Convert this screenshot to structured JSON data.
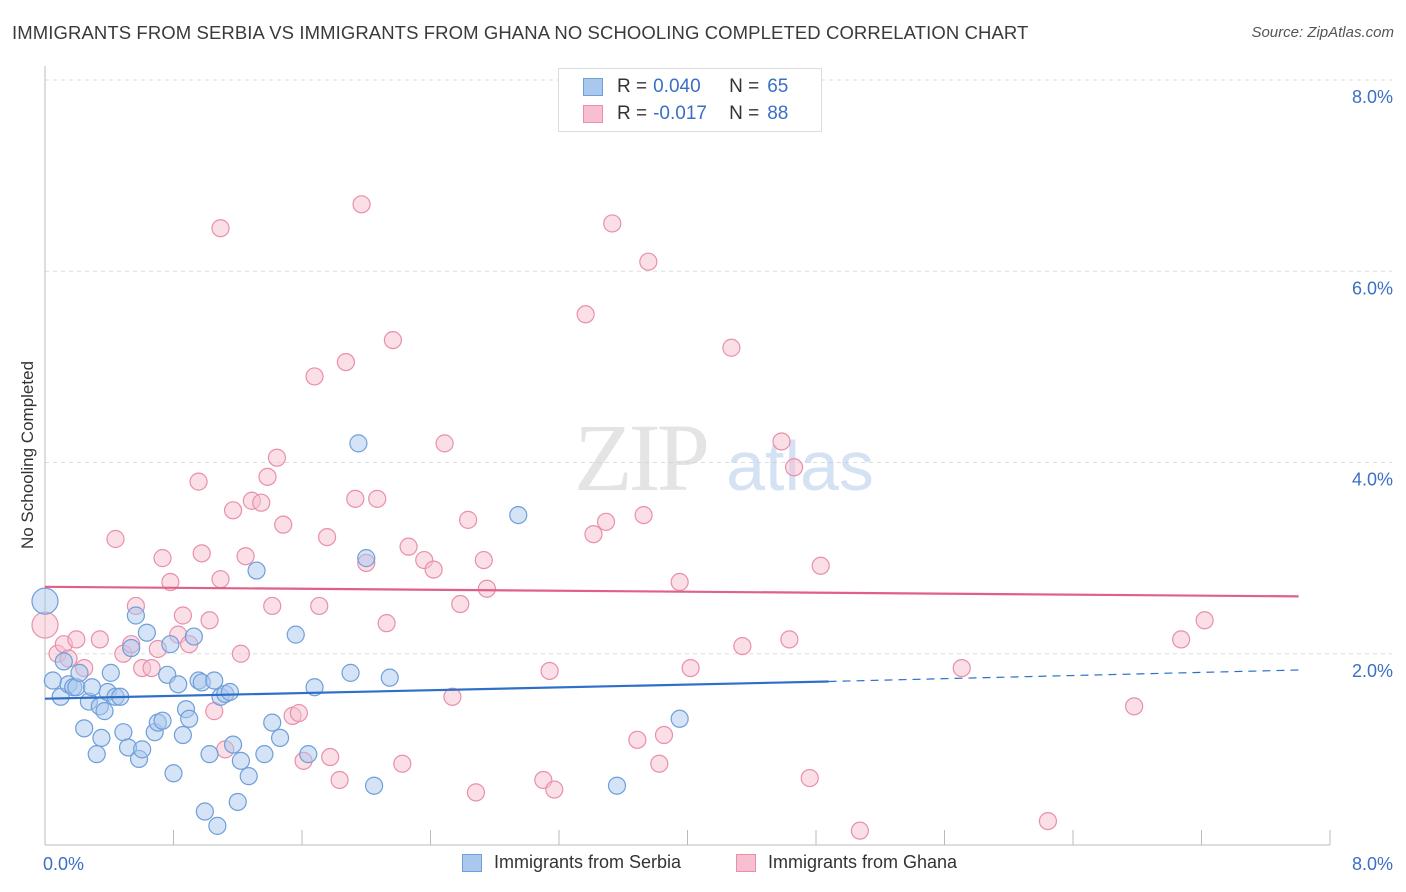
{
  "title": "IMMIGRANTS FROM SERBIA VS IMMIGRANTS FROM GHANA NO SCHOOLING COMPLETED CORRELATION CHART",
  "source": "Source: ZipAtlas.com",
  "watermark": {
    "zip": "ZIP",
    "atlas": "atlas"
  },
  "legend": {
    "serbia": {
      "r_label": "R =",
      "r_value": "0.040",
      "n_label": "N =",
      "n_value": "65"
    },
    "ghana": {
      "r_label": "R =",
      "r_value": "-0.017",
      "n_label": "N =",
      "n_value": "88"
    }
  },
  "colors": {
    "serbia_fill": "#aac8ee",
    "serbia_stroke": "#6f9fd9",
    "serbia_line": "#2f6fc9",
    "ghana_fill": "#f7bfd0",
    "ghana_stroke": "#e98fab",
    "ghana_line": "#e0608a",
    "tick_label": "#3b6fc4",
    "grid": "#dddddd"
  },
  "chart_data": {
    "type": "scatter",
    "title": "IMMIGRANTS FROM SERBIA VS IMMIGRANTS FROM GHANA NO SCHOOLING COMPLETED CORRELATION CHART",
    "xlabel": "",
    "ylabel": "No Schooling Completed",
    "xlim": [
      0,
      8.2
    ],
    "ylim": [
      0,
      8
    ],
    "x_tick_labels": [
      "0.0%",
      "8.0%"
    ],
    "y_tick_labels": [
      "2.0%",
      "4.0%",
      "6.0%",
      "8.0%"
    ],
    "y_ticks": [
      2,
      4,
      6,
      8
    ],
    "grid": true,
    "legend_position": "top-center",
    "series": [
      {
        "name": "Immigrants from Serbia",
        "trend": {
          "x0": 0.0,
          "y0": 1.53,
          "x1": 5.0,
          "y1": 1.71,
          "dashed_to_x": 8.0,
          "dashed_to_y": 1.83
        },
        "points": [
          [
            0.0,
            2.55
          ],
          [
            0.05,
            1.72
          ],
          [
            0.1,
            1.55
          ],
          [
            0.12,
            1.92
          ],
          [
            0.15,
            1.68
          ],
          [
            0.18,
            1.65
          ],
          [
            0.2,
            1.65
          ],
          [
            0.22,
            1.8
          ],
          [
            0.25,
            1.22
          ],
          [
            0.28,
            1.5
          ],
          [
            0.3,
            1.65
          ],
          [
            0.33,
            0.95
          ],
          [
            0.35,
            1.45
          ],
          [
            0.36,
            1.12
          ],
          [
            0.38,
            1.4
          ],
          [
            0.4,
            1.6
          ],
          [
            0.42,
            1.8
          ],
          [
            0.45,
            1.55
          ],
          [
            0.48,
            1.55
          ],
          [
            0.5,
            1.18
          ],
          [
            0.53,
            1.02
          ],
          [
            0.55,
            2.06
          ],
          [
            0.58,
            2.4
          ],
          [
            0.6,
            0.9
          ],
          [
            0.62,
            1.0
          ],
          [
            0.65,
            2.22
          ],
          [
            0.7,
            1.18
          ],
          [
            0.72,
            1.28
          ],
          [
            0.75,
            1.3
          ],
          [
            0.78,
            1.78
          ],
          [
            0.8,
            2.1
          ],
          [
            0.82,
            0.75
          ],
          [
            0.85,
            1.68
          ],
          [
            0.88,
            1.15
          ],
          [
            0.9,
            1.42
          ],
          [
            0.92,
            1.32
          ],
          [
            0.95,
            2.18
          ],
          [
            0.98,
            1.72
          ],
          [
            1.0,
            1.7
          ],
          [
            1.02,
            0.35
          ],
          [
            1.05,
            0.95
          ],
          [
            1.08,
            1.72
          ],
          [
            1.1,
            0.2
          ],
          [
            1.12,
            1.55
          ],
          [
            1.15,
            1.58
          ],
          [
            1.18,
            1.6
          ],
          [
            1.2,
            1.05
          ],
          [
            1.23,
            0.45
          ],
          [
            1.25,
            0.88
          ],
          [
            1.3,
            0.72
          ],
          [
            1.35,
            2.87
          ],
          [
            1.4,
            0.95
          ],
          [
            1.45,
            1.28
          ],
          [
            1.5,
            1.12
          ],
          [
            1.6,
            2.2
          ],
          [
            1.68,
            0.95
          ],
          [
            1.72,
            1.65
          ],
          [
            1.95,
            1.8
          ],
          [
            2.0,
            4.2
          ],
          [
            2.05,
            3.0
          ],
          [
            2.2,
            1.75
          ],
          [
            2.1,
            0.62
          ],
          [
            3.02,
            3.45
          ],
          [
            3.65,
            0.62
          ],
          [
            4.05,
            1.32
          ]
        ]
      },
      {
        "name": "Immigrants from Ghana",
        "trend": {
          "x0": 0.0,
          "y0": 2.7,
          "x1": 8.0,
          "y1": 2.6
        },
        "points": [
          [
            0.0,
            2.3
          ],
          [
            0.08,
            2.0
          ],
          [
            0.12,
            2.1
          ],
          [
            0.15,
            1.95
          ],
          [
            0.2,
            2.15
          ],
          [
            0.25,
            1.85
          ],
          [
            0.35,
            2.15
          ],
          [
            0.45,
            3.2
          ],
          [
            0.5,
            2.0
          ],
          [
            0.55,
            2.1
          ],
          [
            0.58,
            2.5
          ],
          [
            0.62,
            1.85
          ],
          [
            0.68,
            1.85
          ],
          [
            0.72,
            2.05
          ],
          [
            0.75,
            3.0
          ],
          [
            0.8,
            2.75
          ],
          [
            0.85,
            2.2
          ],
          [
            0.88,
            2.4
          ],
          [
            0.92,
            2.1
          ],
          [
            0.98,
            3.8
          ],
          [
            1.0,
            3.05
          ],
          [
            1.05,
            2.35
          ],
          [
            1.08,
            1.4
          ],
          [
            1.12,
            2.78
          ],
          [
            1.15,
            1.0
          ],
          [
            1.2,
            3.5
          ],
          [
            1.25,
            2.0
          ],
          [
            1.28,
            3.02
          ],
          [
            1.32,
            3.6
          ],
          [
            1.38,
            3.58
          ],
          [
            1.42,
            3.85
          ],
          [
            1.45,
            2.5
          ],
          [
            1.48,
            4.05
          ],
          [
            1.52,
            3.35
          ],
          [
            1.58,
            1.35
          ],
          [
            1.62,
            1.38
          ],
          [
            1.65,
            0.88
          ],
          [
            1.72,
            4.9
          ],
          [
            1.75,
            2.5
          ],
          [
            1.8,
            3.22
          ],
          [
            1.82,
            0.92
          ],
          [
            1.88,
            0.68
          ],
          [
            1.92,
            5.05
          ],
          [
            1.98,
            3.62
          ],
          [
            2.02,
            6.7
          ],
          [
            2.05,
            2.95
          ],
          [
            2.12,
            3.62
          ],
          [
            2.18,
            2.32
          ],
          [
            2.22,
            5.28
          ],
          [
            2.28,
            0.85
          ],
          [
            2.32,
            3.12
          ],
          [
            2.42,
            2.98
          ],
          [
            2.48,
            2.88
          ],
          [
            2.55,
            4.2
          ],
          [
            2.6,
            1.55
          ],
          [
            2.65,
            2.52
          ],
          [
            2.7,
            3.4
          ],
          [
            2.75,
            0.55
          ],
          [
            2.8,
            2.98
          ],
          [
            2.82,
            2.68
          ],
          [
            3.18,
            0.68
          ],
          [
            3.22,
            1.82
          ],
          [
            3.25,
            0.58
          ],
          [
            3.45,
            5.55
          ],
          [
            3.5,
            3.25
          ],
          [
            3.58,
            3.38
          ],
          [
            3.62,
            6.5
          ],
          [
            3.78,
            1.1
          ],
          [
            3.82,
            3.45
          ],
          [
            3.85,
            6.1
          ],
          [
            3.92,
            0.85
          ],
          [
            3.95,
            1.15
          ],
          [
            4.05,
            2.75
          ],
          [
            4.12,
            1.85
          ],
          [
            4.38,
            5.2
          ],
          [
            4.45,
            2.08
          ],
          [
            4.7,
            4.22
          ],
          [
            4.75,
            2.15
          ],
          [
            4.78,
            3.95
          ],
          [
            4.88,
            0.7
          ],
          [
            4.95,
            2.92
          ],
          [
            5.2,
            0.15
          ],
          [
            5.85,
            1.85
          ],
          [
            6.4,
            0.25
          ],
          [
            6.95,
            1.45
          ],
          [
            7.25,
            2.15
          ],
          [
            7.4,
            2.35
          ],
          [
            1.12,
            6.45
          ]
        ]
      }
    ]
  },
  "bottom_legend": {
    "serbia": "Immigrants from Serbia",
    "ghana": "Immigrants from Ghana"
  }
}
